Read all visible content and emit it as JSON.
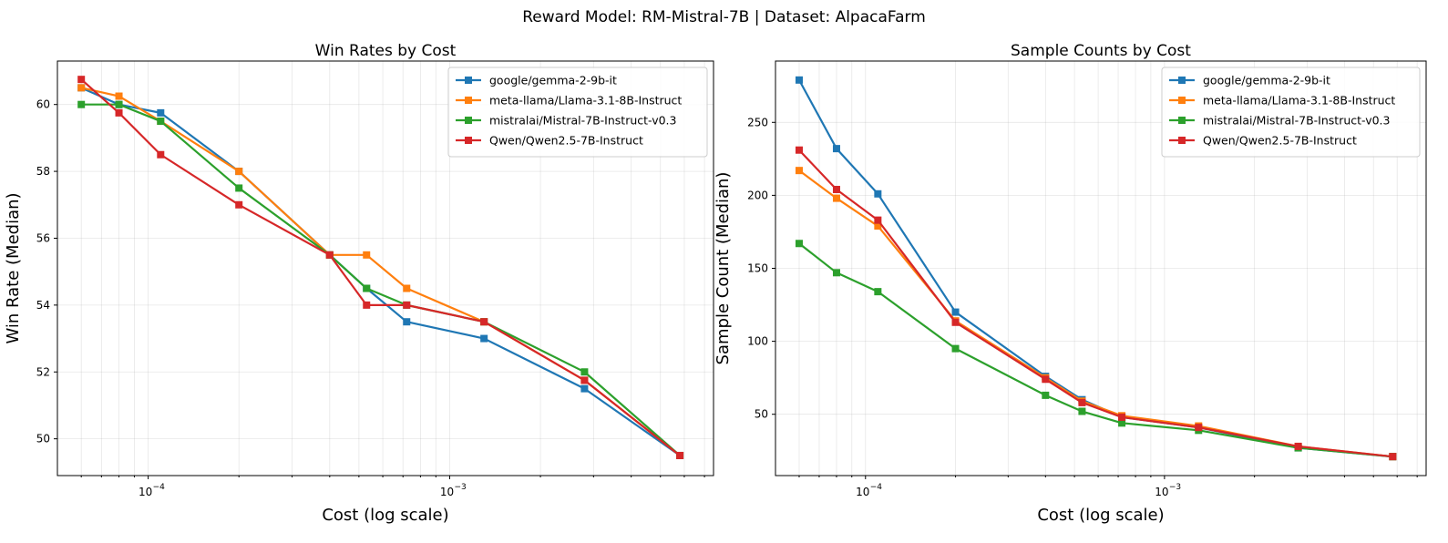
{
  "suptitle": "Reward Model: RM-Mistral-7B | Dataset: AlpacaFarm",
  "chart_data": [
    {
      "type": "line",
      "title": "Win Rates by Cost",
      "xlabel": "Cost (log scale)",
      "ylabel": "Win Rate (Median)",
      "xscale": "log",
      "xlim": [
        5e-05,
        0.0075
      ],
      "ylim": [
        48.9,
        61.3
      ],
      "yticks": [
        50,
        52,
        54,
        56,
        58,
        60
      ],
      "ytick_labels": [
        "50",
        "52",
        "54",
        "56",
        "58",
        "60"
      ],
      "xticks": [
        0.0001,
        0.001
      ],
      "xtick_labels": [
        "10",
        "10"
      ],
      "xtick_exponents": [
        "−4",
        "−3"
      ],
      "legend_position": "top-right",
      "x": [
        6e-05,
        8e-05,
        0.00011,
        0.0002,
        0.0004,
        0.00053,
        0.00072,
        0.0013,
        0.0028,
        0.0058
      ],
      "series": [
        {
          "name": "google/gemma-2-9b-it",
          "color": "#1f77b4",
          "values": [
            60.5,
            60.0,
            59.75,
            58.0,
            55.5,
            54.5,
            53.5,
            53.0,
            51.5,
            49.5
          ]
        },
        {
          "name": "meta-llama/Llama-3.1-8B-Instruct",
          "color": "#ff7f0e",
          "values": [
            60.5,
            60.25,
            59.5,
            58.0,
            55.5,
            55.5,
            54.5,
            53.5,
            51.75,
            49.5
          ]
        },
        {
          "name": "mistralai/Mistral-7B-Instruct-v0.3",
          "color": "#2ca02c",
          "values": [
            60.0,
            60.0,
            59.5,
            57.5,
            55.5,
            54.5,
            54.0,
            53.5,
            52.0,
            49.5
          ]
        },
        {
          "name": "Qwen/Qwen2.5-7B-Instruct",
          "color": "#d62728",
          "values": [
            60.75,
            59.75,
            58.5,
            57.0,
            55.5,
            54.0,
            54.0,
            53.5,
            51.75,
            49.5
          ]
        }
      ]
    },
    {
      "type": "line",
      "title": "Sample Counts by Cost",
      "xlabel": "Cost (log scale)",
      "ylabel": "Sample Count (Median)",
      "xscale": "log",
      "xlim": [
        5e-05,
        0.0075
      ],
      "ylim": [
        8,
        292
      ],
      "yticks": [
        50,
        100,
        150,
        200,
        250
      ],
      "ytick_labels": [
        "50",
        "100",
        "150",
        "200",
        "250"
      ],
      "xticks": [
        0.0001,
        0.001
      ],
      "xtick_labels": [
        "10",
        "10"
      ],
      "xtick_exponents": [
        "−4",
        "−3"
      ],
      "legend_position": "top-right",
      "x": [
        6e-05,
        8e-05,
        0.00011,
        0.0002,
        0.0004,
        0.00053,
        0.00072,
        0.0013,
        0.0028,
        0.0058
      ],
      "series": [
        {
          "name": "google/gemma-2-9b-it",
          "color": "#1f77b4",
          "values": [
            279,
            232,
            201,
            120,
            76,
            60,
            48,
            41,
            27,
            21
          ]
        },
        {
          "name": "meta-llama/Llama-3.1-8B-Instruct",
          "color": "#ff7f0e",
          "values": [
            217,
            198,
            179,
            114,
            75,
            59,
            49,
            42,
            28,
            21
          ]
        },
        {
          "name": "mistralai/Mistral-7B-Instruct-v0.3",
          "color": "#2ca02c",
          "values": [
            167,
            147,
            134,
            95,
            63,
            52,
            44,
            39,
            27,
            21
          ]
        },
        {
          "name": "Qwen/Qwen2.5-7B-Instruct",
          "color": "#d62728",
          "values": [
            231,
            204,
            183,
            113,
            74,
            58,
            48,
            41,
            28,
            21
          ]
        }
      ]
    }
  ]
}
